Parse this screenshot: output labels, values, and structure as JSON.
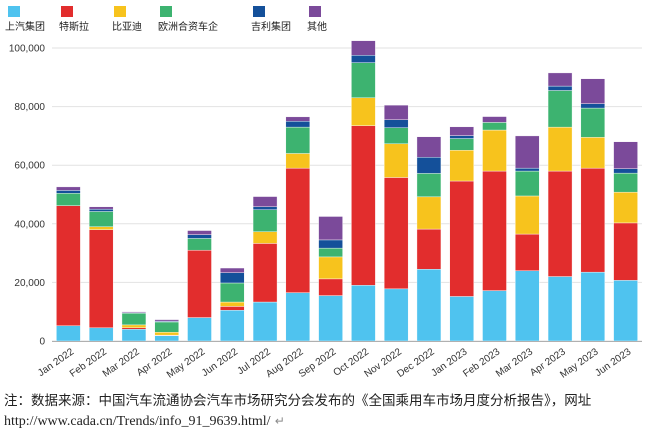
{
  "chart_data": {
    "type": "bar",
    "stacked": true,
    "categories": [
      "Jan 2022",
      "Feb 2022",
      "Mar 2022",
      "Apr 2022",
      "May 2022",
      "Jun 2022",
      "Jul 2022",
      "Aug 2022",
      "Sep 2022",
      "Oct 2022",
      "Nov 2022",
      "Dec 2022",
      "Jan 2023",
      "Feb 2023",
      "Mar 2023",
      "Apr 2023",
      "May 2023",
      "Jun 2023"
    ],
    "series": [
      {
        "name": "上汽集团",
        "color": "#4fc3ef",
        "values": [
          5200,
          4500,
          4000,
          1800,
          8000,
          10500,
          13300,
          16500,
          15500,
          19000,
          17800,
          24500,
          15200,
          17200,
          24000,
          22000,
          23500,
          20700
        ]
      },
      {
        "name": "特斯拉",
        "color": "#e22d2d",
        "values": [
          41000,
          33500,
          500,
          200,
          23000,
          1300,
          20000,
          42500,
          5700,
          54500,
          38000,
          13700,
          39400,
          40800,
          12500,
          36000,
          35500,
          19600
        ]
      },
      {
        "name": "比亚迪",
        "color": "#f7c31d",
        "values": [
          0,
          1000,
          1000,
          1000,
          0,
          1500,
          4000,
          5000,
          7500,
          9500,
          11500,
          11000,
          10500,
          14000,
          13000,
          15000,
          10500,
          10500
        ]
      },
      {
        "name": "欧洲合资车企",
        "color": "#3db370",
        "values": [
          4200,
          5200,
          4000,
          3500,
          4000,
          6500,
          7500,
          9000,
          3000,
          12000,
          5500,
          8000,
          4000,
          2600,
          8500,
          12500,
          10000,
          6500
        ]
      },
      {
        "name": "吉利集团",
        "color": "#14509a",
        "values": [
          1000,
          800,
          200,
          300,
          1300,
          3500,
          1000,
          2000,
          2800,
          2500,
          2700,
          5500,
          1000,
          0,
          1000,
          1500,
          1500,
          1500
        ]
      },
      {
        "name": "其他",
        "color": "#7b4a9a",
        "values": [
          1200,
          800,
          300,
          500,
          1400,
          1600,
          3500,
          1500,
          8000,
          5000,
          5000,
          7000,
          3000,
          2000,
          11000,
          4500,
          8500,
          9200
        ]
      }
    ],
    "title": "",
    "xlabel": "",
    "ylabel": "",
    "ylim": [
      0,
      100000
    ],
    "yticks": [
      "0",
      "20,000",
      "40,000",
      "60,000",
      "80,000",
      "100,000"
    ],
    "grid": true,
    "legend": "top-left"
  },
  "legend_labels": [
    "上汽集团",
    "特斯拉",
    "比亚迪",
    "欧洲合资车企",
    "吉利集团",
    "其他"
  ],
  "note": {
    "text": "注：数据来源：中国汽车流通协会汽车市场研究分会发布的《全国乘用车市场月度分析报告》，网址 ",
    "url": "http://www.cada.cn/Trends/info_91_9639.html/",
    "mark": "↵"
  }
}
